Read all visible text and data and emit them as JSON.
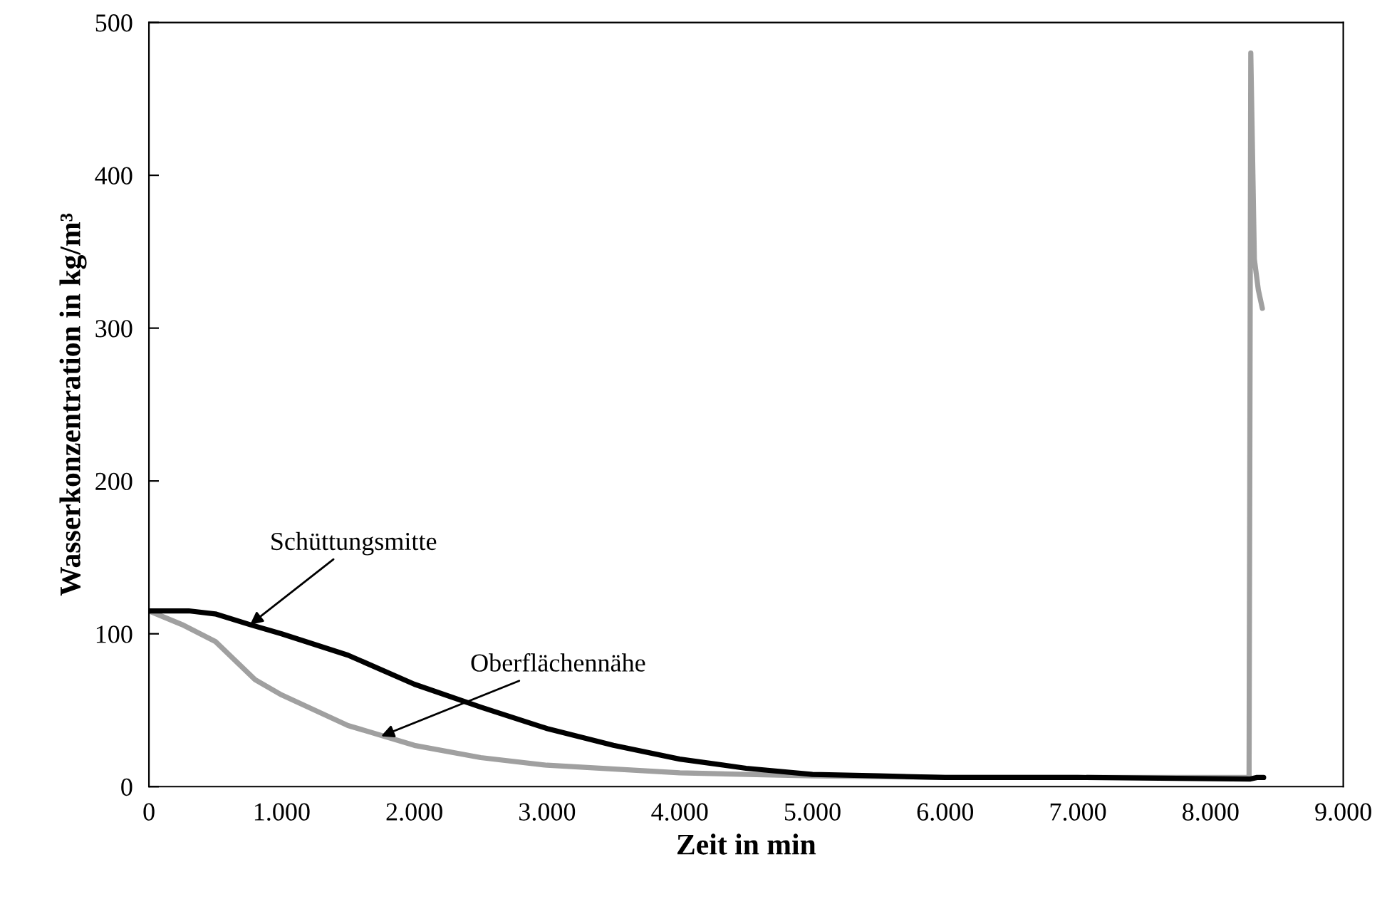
{
  "chart_data": {
    "type": "line",
    "xlabel": "Zeit in min",
    "ylabel": "Wasserkonzentration in kg/m³",
    "xlim": [
      0,
      9000
    ],
    "ylim": [
      0,
      500
    ],
    "xticks": [
      0,
      {
        "value": 1000,
        "label": "1.000"
      },
      {
        "value": 2000,
        "label": "2.000"
      },
      {
        "value": 3000,
        "label": "3.000"
      },
      {
        "value": 4000,
        "label": "4.000"
      },
      {
        "value": 5000,
        "label": "5.000"
      },
      {
        "value": 6000,
        "label": "6.000"
      },
      {
        "value": 7000,
        "label": "7.000"
      },
      {
        "value": 8000,
        "label": "8.000"
      },
      {
        "value": 9000,
        "label": "9.000"
      }
    ],
    "yticks": [
      0,
      100,
      200,
      300,
      400,
      500
    ],
    "grid": false,
    "legend": false,
    "marker": "none",
    "line_style": "solid",
    "series": [
      {
        "color": "#a0a0a0",
        "x": [
          0,
          250,
          500,
          800,
          1000,
          1500,
          2000,
          2500,
          3000,
          4000,
          5000,
          6000,
          7000,
          8290,
          8303,
          8330,
          8360,
          8390
        ],
        "values": [
          115,
          106,
          95,
          70,
          60,
          40,
          27,
          19,
          14,
          9,
          7,
          6,
          6,
          6,
          480,
          345,
          325,
          313
        ]
      },
      {
        "color": "#000000",
        "x": [
          0,
          300,
          500,
          762,
          1000,
          1500,
          2000,
          2500,
          3000,
          3500,
          4000,
          4500,
          5000,
          5500,
          6000,
          7000,
          8300,
          8350,
          8400
        ],
        "values": [
          115,
          115,
          113,
          106,
          100,
          86,
          67,
          52,
          38,
          27,
          18,
          12,
          8,
          7,
          6,
          6,
          5,
          6,
          6
        ]
      }
    ],
    "annotations": [
      {
        "text": "Schüttungsmitte",
        "x": 762,
        "y": 106
      },
      {
        "text": "Oberflächennähe",
        "x": 1750,
        "y": 33
      }
    ]
  }
}
